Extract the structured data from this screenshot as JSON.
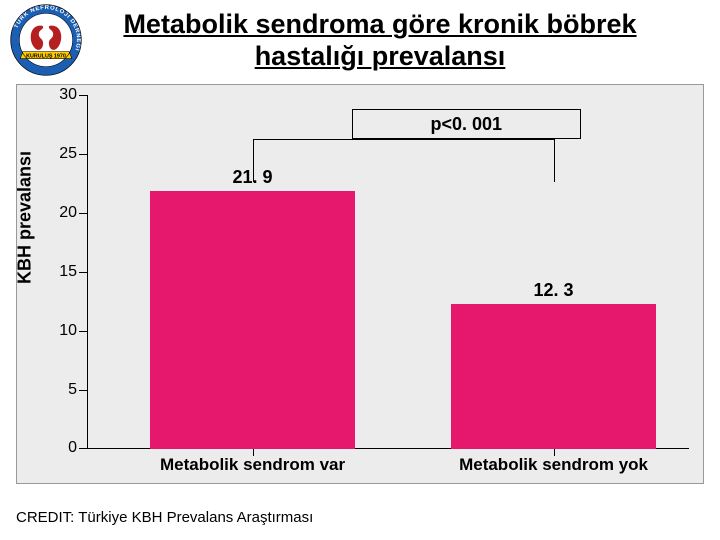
{
  "header": {
    "title": "Metabolik sendroma göre kronik böbrek hastalığı prevalansı",
    "logo": {
      "outer_ring_color": "#1a5fb4",
      "outer_text_color": "#ffffff",
      "inner_bg": "#ffffff",
      "kidney_color": "#b51f1f",
      "banner_color": "#ffcc00",
      "banner_text": "KURULUŞ 1970",
      "ring_text_top": "TÜRK NEFROLOJİ DERNEĞİ"
    }
  },
  "chart": {
    "type": "bar",
    "background_color": "#ececec",
    "axis_color": "#000000",
    "ylabel": "KBH prevalansı",
    "label_fontsize": 18,
    "ylim": [
      0,
      30
    ],
    "ytick_step": 5,
    "yticks": [
      0,
      5,
      10,
      15,
      20,
      25,
      30
    ],
    "categories": [
      "Metabolik sendrom var",
      "Metabolik sendrom yok"
    ],
    "values": [
      21.9,
      12.3
    ],
    "value_labels": [
      "21. 9",
      "12. 3"
    ],
    "bar_colors": [
      "#e6186e",
      "#e6186e"
    ],
    "bar_rel_width": 0.34,
    "bar_centers_rel": [
      0.275,
      0.775
    ],
    "tick_fontsize": 16,
    "cat_fontsize": 17,
    "value_fontsize": 18,
    "significance": {
      "label": "p<0. 001",
      "box_border": "#000000",
      "line_y_value": 26.3,
      "drop_to_value": 22.6,
      "box_top_value": 28.8,
      "box_bottom_value": 26.3,
      "box_left_rel": 0.44,
      "box_right_rel": 0.82
    }
  },
  "credit": "CREDIT: Türkiye KBH Prevalans Araştırması"
}
